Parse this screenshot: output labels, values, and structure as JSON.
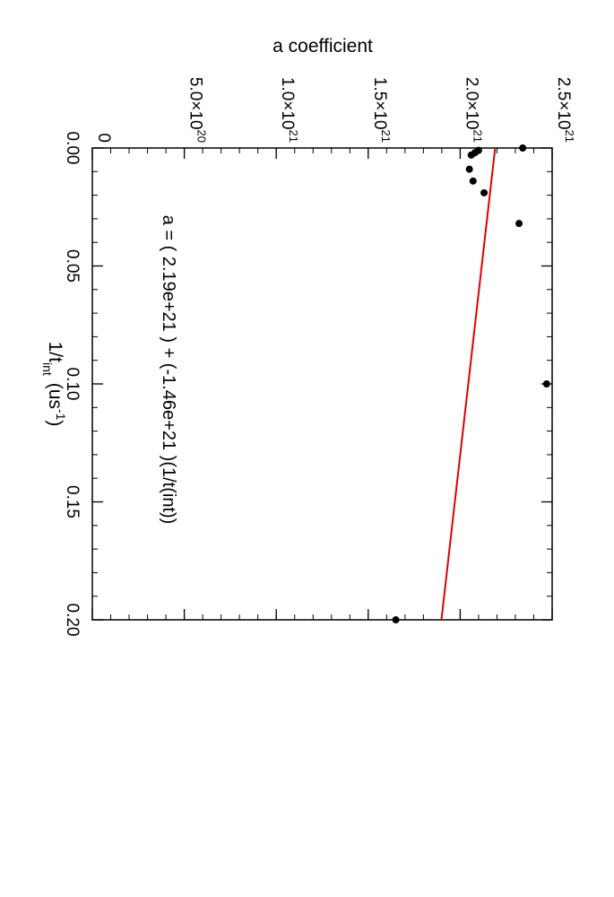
{
  "chart_data": {
    "type": "scatter",
    "title": "",
    "orientation": "rotated 90° clockwise (x runs top→bottom, y runs left→right)",
    "xlabel": {
      "main": "1/t",
      "sub": "int",
      "unit_open": "(us",
      "unit_sup": "-1",
      "unit_close": ")"
    },
    "ylabel": "a coefficient",
    "xlim": [
      0,
      0.2
    ],
    "ylim": [
      0,
      2.5e+21
    ],
    "x_ticks": [
      "0.00",
      "0.05",
      "0.10",
      "0.15",
      "0.20"
    ],
    "y_ticks": [
      {
        "base": "0",
        "exp": ""
      },
      {
        "base": "5.0×10",
        "exp": "20"
      },
      {
        "base": "1.0×10",
        "exp": "21"
      },
      {
        "base": "1.5×10",
        "exp": "21"
      },
      {
        "base": "2.0×10",
        "exp": "21"
      },
      {
        "base": "2.5×10",
        "exp": "21"
      }
    ],
    "points": [
      {
        "x": 0.0,
        "y": 2.34e+21
      },
      {
        "x": 0.001,
        "y": 2.1e+21
      },
      {
        "x": 0.002,
        "y": 2.08e+21
      },
      {
        "x": 0.003,
        "y": 2.06e+21
      },
      {
        "x": 0.009,
        "y": 2.05e+21
      },
      {
        "x": 0.014,
        "y": 2.07e+21
      },
      {
        "x": 0.019,
        "y": 2.13e+21
      },
      {
        "x": 0.032,
        "y": 2.32e+21
      },
      {
        "x": 0.1,
        "y": 2.47e+21
      },
      {
        "x": 0.2,
        "y": 1.65e+21
      }
    ],
    "fit_line": {
      "intercept": 2.19e+21,
      "slope": -1.46e+21,
      "color": "#e00000"
    },
    "point_color": "#000000",
    "annotation": "a = ( 2.19e+21 ) +  (-1.46e+21 )(1/t(int))",
    "grid": false,
    "legend": "none"
  }
}
